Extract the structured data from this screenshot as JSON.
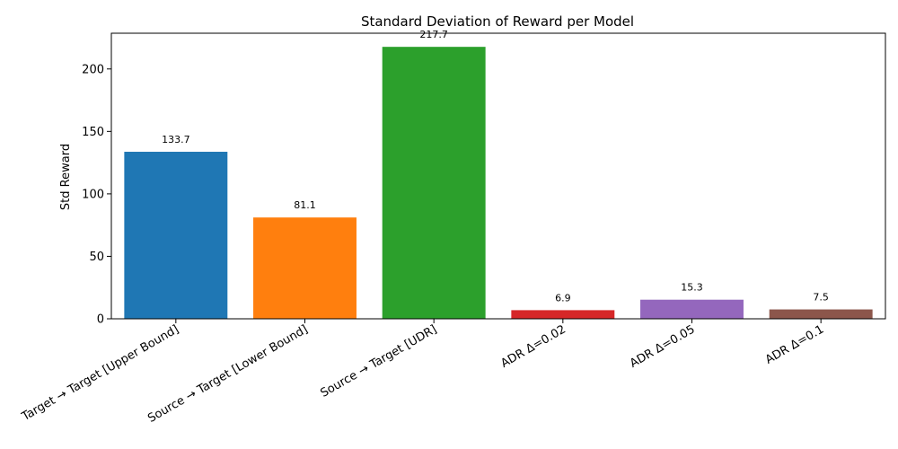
{
  "chart_data": {
    "type": "bar",
    "title": "Standard Deviation of Reward per Model",
    "xlabel": "",
    "ylabel": "Std Reward",
    "categories": [
      "Target → Target [Upper Bound]",
      "Source → Target [Lower Bound]",
      "Source → Target [UDR]",
      "ADR Δ=0.02",
      "ADR Δ=0.05",
      "ADR Δ=0.1"
    ],
    "values": [
      133.7,
      81.1,
      217.7,
      6.9,
      15.3,
      7.5
    ],
    "data_labels": [
      "133.7",
      "81.1",
      "217.7",
      "6.9",
      "15.3",
      "7.5"
    ],
    "colors": [
      "#1f77b4",
      "#ff7f0e",
      "#2ca02c",
      "#d62728",
      "#9467bd",
      "#8c564b"
    ],
    "ylim": [
      0,
      228.6
    ],
    "yticks": [
      0,
      50,
      100,
      150,
      200
    ],
    "ytick_labels": [
      "0",
      "50",
      "100",
      "150",
      "200"
    ],
    "grid": false,
    "legend": "none"
  }
}
